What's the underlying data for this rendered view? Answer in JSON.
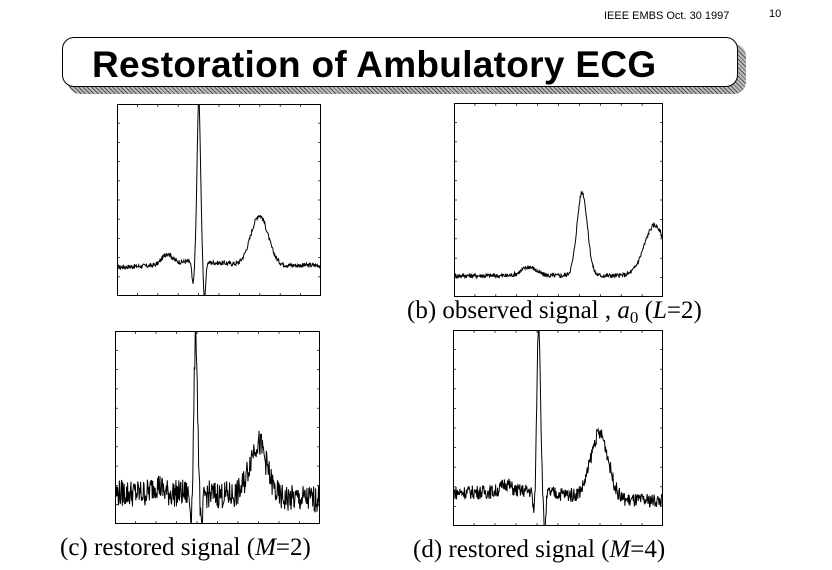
{
  "header": {
    "meta": "IEEE EMBS Oct. 30 1997",
    "page_number": "10",
    "title": "Restoration of Ambulatory ECG"
  },
  "chart_data": [
    {
      "type": "line",
      "id": "a",
      "caption": {
        "prefix": "",
        "var": "",
        "sub": "",
        "mid": "",
        "suffix": ""
      },
      "xlim": [
        0,
        1
      ],
      "ylim": [
        0,
        1
      ],
      "grid": false,
      "noise": 0.002,
      "waves": [
        {
          "name": "baseline",
          "x": [
            0,
            0.2,
            0.34,
            0.55,
            0.6,
            0.7,
            1
          ],
          "y": [
            0.15,
            0.16,
            0.18,
            0.17,
            0.16,
            0.16,
            0.16
          ]
        },
        {
          "name": "p",
          "c": 0.34,
          "w": 0.035,
          "a": 0.055
        },
        {
          "name": "q",
          "c": 0.52,
          "w": 0.008,
          "a": -0.12
        },
        {
          "name": "r",
          "c": 0.56,
          "w": 0.012,
          "a": 0.85
        },
        {
          "name": "s",
          "c": 0.6,
          "w": 0.008,
          "a": -0.2
        },
        {
          "name": "t",
          "c": 0.98,
          "w": 0.06,
          "a": 0.26
        }
      ],
      "x_range_norm": [
        0,
        1
      ]
    },
    {
      "type": "line",
      "id": "b",
      "caption": {
        "prefix": "(b) observed signal , ",
        "var": "a",
        "sub": "0",
        "mid": " (",
        "italic": "L",
        "suffix": "=2)"
      },
      "xlim": [
        0,
        1
      ],
      "ylim": [
        0,
        1
      ],
      "grid": false,
      "noise": 0.002,
      "waves": [
        {
          "name": "baseline",
          "x": [
            0,
            1
          ],
          "y": [
            0.11,
            0.11
          ]
        },
        {
          "name": "p",
          "c": 0.5,
          "w": 0.05,
          "a": 0.045
        },
        {
          "name": "r",
          "c": 0.86,
          "w": 0.035,
          "a": 0.43
        },
        {
          "name": "t",
          "c": 1.35,
          "w": 0.07,
          "a": 0.26
        }
      ]
    },
    {
      "type": "line",
      "id": "c",
      "caption": {
        "prefix": "(c) restored signal (",
        "var": "",
        "sub": "",
        "mid": "",
        "italic": "M",
        "suffix": "=2)"
      },
      "xlim": [
        0,
        1
      ],
      "ylim": [
        0,
        1
      ],
      "grid": false,
      "noise": 0.012,
      "waves": [
        {
          "name": "baseline",
          "x": [
            0,
            0.3,
            0.55,
            0.7,
            1
          ],
          "y": [
            0.16,
            0.16,
            0.15,
            0.13,
            0.13
          ]
        },
        {
          "name": "p",
          "c": 0.28,
          "w": 0.03,
          "a": 0.045
        },
        {
          "name": "q",
          "c": 0.52,
          "w": 0.008,
          "a": -0.13
        },
        {
          "name": "r",
          "c": 0.55,
          "w": 0.012,
          "a": 0.83
        },
        {
          "name": "s",
          "c": 0.59,
          "w": 0.008,
          "a": -0.2
        },
        {
          "name": "t",
          "c": 0.98,
          "w": 0.06,
          "a": 0.29
        }
      ]
    },
    {
      "type": "line",
      "id": "d",
      "caption": {
        "prefix": "(d) restored signal (",
        "var": "",
        "sub": "",
        "mid": "",
        "italic": "M",
        "suffix": "=4)"
      },
      "xlim": [
        0,
        1
      ],
      "ylim": [
        0,
        1
      ],
      "grid": false,
      "noise": 0.006,
      "waves": [
        {
          "name": "baseline",
          "x": [
            0,
            0.35,
            0.55,
            0.7,
            1
          ],
          "y": [
            0.17,
            0.18,
            0.16,
            0.13,
            0.13
          ]
        },
        {
          "name": "p",
          "c": 0.35,
          "w": 0.03,
          "a": 0.04
        },
        {
          "name": "q",
          "c": 0.54,
          "w": 0.008,
          "a": -0.13
        },
        {
          "name": "r",
          "c": 0.57,
          "w": 0.012,
          "a": 0.87
        },
        {
          "name": "s",
          "c": 0.61,
          "w": 0.008,
          "a": -0.2
        },
        {
          "name": "t",
          "c": 0.98,
          "w": 0.06,
          "a": 0.34
        }
      ]
    }
  ]
}
